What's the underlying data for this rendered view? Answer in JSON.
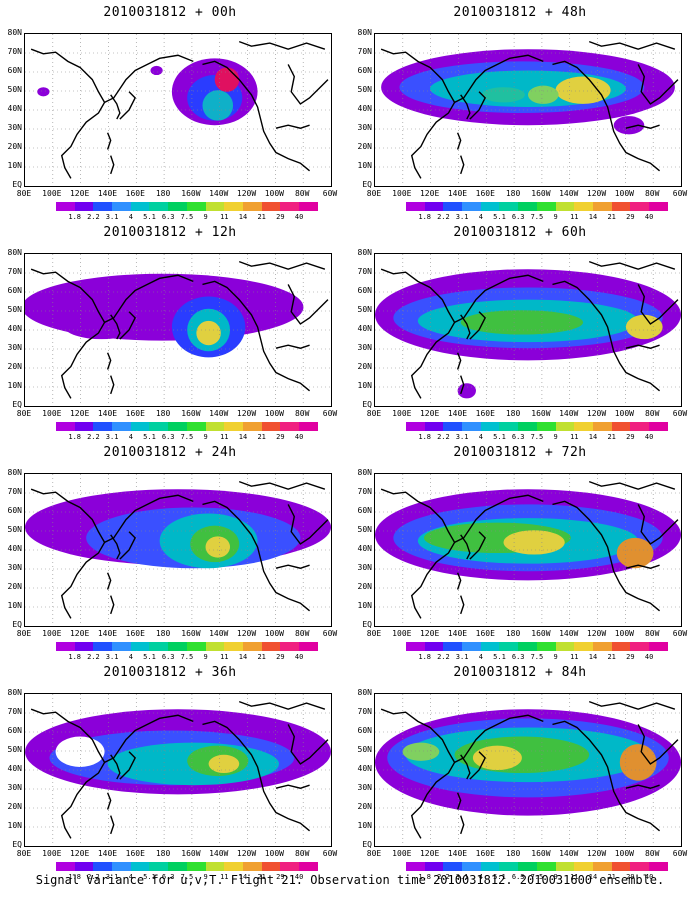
{
  "panels": [
    {
      "title": "2010031812 + 00h",
      "column": 0,
      "row": 0,
      "blobs": [
        [
          0.62,
          0.38,
          0.14,
          0.22,
          "#8b00d9"
        ],
        [
          0.62,
          0.42,
          0.09,
          0.15,
          "#2a3cff"
        ],
        [
          0.63,
          0.47,
          0.05,
          0.1,
          "#0fb0c8"
        ],
        [
          0.66,
          0.3,
          0.04,
          0.08,
          "#e01060"
        ],
        [
          0.06,
          0.38,
          0.02,
          0.03,
          "#8b00d9"
        ],
        [
          0.43,
          0.24,
          0.02,
          0.03,
          "#8b00d9"
        ]
      ]
    },
    {
      "title": "2010031812 + 48h",
      "column": 1,
      "row": 0,
      "blobs": [
        [
          0.5,
          0.35,
          0.48,
          0.25,
          "#8b00d9"
        ],
        [
          0.48,
          0.35,
          0.4,
          0.17,
          "#3a50ff"
        ],
        [
          0.5,
          0.36,
          0.32,
          0.12,
          "#00b8c8"
        ],
        [
          0.68,
          0.37,
          0.09,
          0.09,
          "#e0d040"
        ],
        [
          0.55,
          0.4,
          0.05,
          0.06,
          "#80d060"
        ],
        [
          0.42,
          0.4,
          0.07,
          0.05,
          "#20c0a0"
        ],
        [
          0.83,
          0.6,
          0.05,
          0.06,
          "#8b00d9"
        ]
      ]
    },
    {
      "title": "2010031812 + 12h",
      "column": 0,
      "row": 1,
      "blobs": [
        [
          0.45,
          0.35,
          0.46,
          0.22,
          "#8b00d9"
        ],
        [
          0.6,
          0.48,
          0.12,
          0.2,
          "#2a3cff"
        ],
        [
          0.6,
          0.5,
          0.07,
          0.14,
          "#00b8c8"
        ],
        [
          0.6,
          0.52,
          0.04,
          0.08,
          "#e0d040"
        ],
        [
          0.25,
          0.48,
          0.12,
          0.08,
          "#8b00d9"
        ]
      ]
    },
    {
      "title": "2010031812 + 60h",
      "column": 1,
      "row": 1,
      "blobs": [
        [
          0.5,
          0.4,
          0.5,
          0.3,
          "#8b00d9"
        ],
        [
          0.5,
          0.42,
          0.44,
          0.2,
          "#3a50ff"
        ],
        [
          0.5,
          0.44,
          0.36,
          0.14,
          "#00b8c8"
        ],
        [
          0.48,
          0.45,
          0.2,
          0.08,
          "#40c040"
        ],
        [
          0.88,
          0.48,
          0.06,
          0.08,
          "#e0d040"
        ],
        [
          0.3,
          0.9,
          0.03,
          0.05,
          "#8b00d9"
        ]
      ]
    },
    {
      "title": "2010031812 + 24h",
      "column": 0,
      "row": 2,
      "blobs": [
        [
          0.5,
          0.35,
          0.5,
          0.25,
          "#8b00d9"
        ],
        [
          0.55,
          0.42,
          0.35,
          0.2,
          "#3a50ff"
        ],
        [
          0.6,
          0.44,
          0.16,
          0.18,
          "#00b8c8"
        ],
        [
          0.62,
          0.46,
          0.08,
          0.12,
          "#40c040"
        ],
        [
          0.63,
          0.48,
          0.04,
          0.07,
          "#e0d040"
        ]
      ]
    },
    {
      "title": "2010031812 + 72h",
      "column": 1,
      "row": 2,
      "blobs": [
        [
          0.5,
          0.4,
          0.5,
          0.3,
          "#8b00d9"
        ],
        [
          0.5,
          0.42,
          0.44,
          0.22,
          "#3a50ff"
        ],
        [
          0.5,
          0.44,
          0.36,
          0.15,
          "#00b8c8"
        ],
        [
          0.4,
          0.42,
          0.24,
          0.1,
          "#40c040"
        ],
        [
          0.52,
          0.45,
          0.1,
          0.08,
          "#e0d040"
        ],
        [
          0.85,
          0.52,
          0.06,
          0.1,
          "#e09030"
        ]
      ]
    },
    {
      "title": "2010031812 + 36h",
      "column": 0,
      "row": 3,
      "blobs": [
        [
          0.5,
          0.38,
          0.5,
          0.28,
          "#8b00d9"
        ],
        [
          0.48,
          0.42,
          0.4,
          0.18,
          "#3a50ff"
        ],
        [
          0.55,
          0.46,
          0.28,
          0.14,
          "#00b8c8"
        ],
        [
          0.63,
          0.44,
          0.1,
          0.1,
          "#40c040"
        ],
        [
          0.65,
          0.46,
          0.05,
          0.06,
          "#e0d040"
        ],
        [
          0.18,
          0.38,
          0.08,
          0.1,
          "#ffffff"
        ]
      ]
    },
    {
      "title": "2010031812 + 84h",
      "column": 1,
      "row": 3,
      "blobs": [
        [
          0.5,
          0.45,
          0.5,
          0.35,
          "#8b00d9"
        ],
        [
          0.5,
          0.42,
          0.46,
          0.26,
          "#3a50ff"
        ],
        [
          0.5,
          0.4,
          0.4,
          0.18,
          "#00b8c8"
        ],
        [
          0.48,
          0.4,
          0.22,
          0.12,
          "#40c040"
        ],
        [
          0.4,
          0.42,
          0.08,
          0.08,
          "#e0d040"
        ],
        [
          0.86,
          0.45,
          0.06,
          0.12,
          "#e09030"
        ],
        [
          0.15,
          0.38,
          0.06,
          0.06,
          "#80d060"
        ]
      ]
    }
  ],
  "y_labels": [
    "80N",
    "70N",
    "60N",
    "50N",
    "40N",
    "30N",
    "20N",
    "10N",
    "EQ"
  ],
  "x_labels": [
    "80E",
    "100E",
    "120E",
    "140E",
    "160E",
    "180",
    "160W",
    "140W",
    "120W",
    "100W",
    "80W",
    "60W"
  ],
  "colorbar_labels": [
    "1.8",
    "2.2",
    "3.1",
    "4",
    "5.1",
    "6.3",
    "7.5",
    "9",
    "11",
    "14",
    "21",
    "29",
    "40"
  ],
  "colorbar_colors": [
    "#b000e0",
    "#7000f0",
    "#2050ff",
    "#3090ff",
    "#00c0d0",
    "#00d0a0",
    "#00d060",
    "#30e030",
    "#c0e030",
    "#f0d030",
    "#f0a030",
    "#f05030",
    "#f02080",
    "#e000a0"
  ],
  "footer": "Signal Variance for u,v,T. Flight 21. Observation time 2010031812. 2010031600 ensemble."
}
